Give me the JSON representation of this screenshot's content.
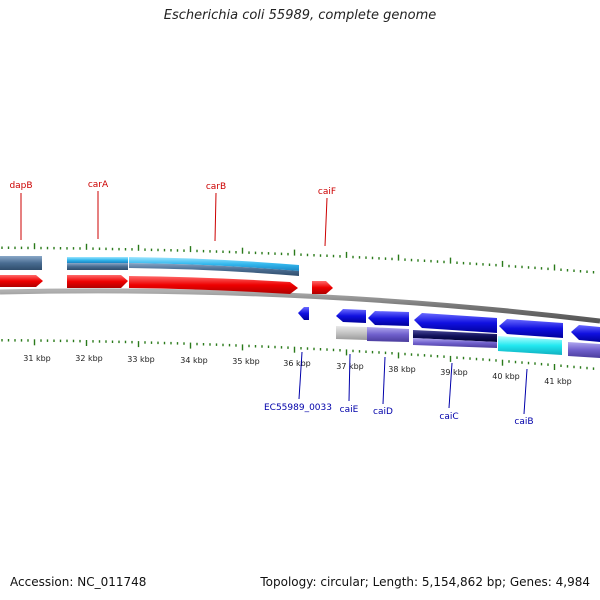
{
  "title": "Escherichia coli 55989, complete genome",
  "accession": "Accession: NC_011748",
  "summary": "Topology: circular; Length: 5,154,862 bp; Genes: 4,984",
  "colors": {
    "forward": "#ff0000",
    "reverse": "#0000ee",
    "forward_label": "#cc0000",
    "reverse_label": "#0000aa",
    "tick": "#2a7a1a",
    "backbone": "#888888"
  },
  "ruler_labels": [
    "31 kbp",
    "32 kbp",
    "33 kbp",
    "34 kbp",
    "35 kbp",
    "36 kbp",
    "37 kbp",
    "38 kbp",
    "39 kbp",
    "40 kbp",
    "41 kbp"
  ],
  "forward_genes": [
    {
      "name": "dapB"
    },
    {
      "name": "carA"
    },
    {
      "name": "carB"
    },
    {
      "name": "caiF"
    }
  ],
  "reverse_genes": [
    {
      "name": "EC55989_0033"
    },
    {
      "name": "caiE"
    },
    {
      "name": "caiD"
    },
    {
      "name": "caiC"
    },
    {
      "name": "caiB"
    }
  ]
}
